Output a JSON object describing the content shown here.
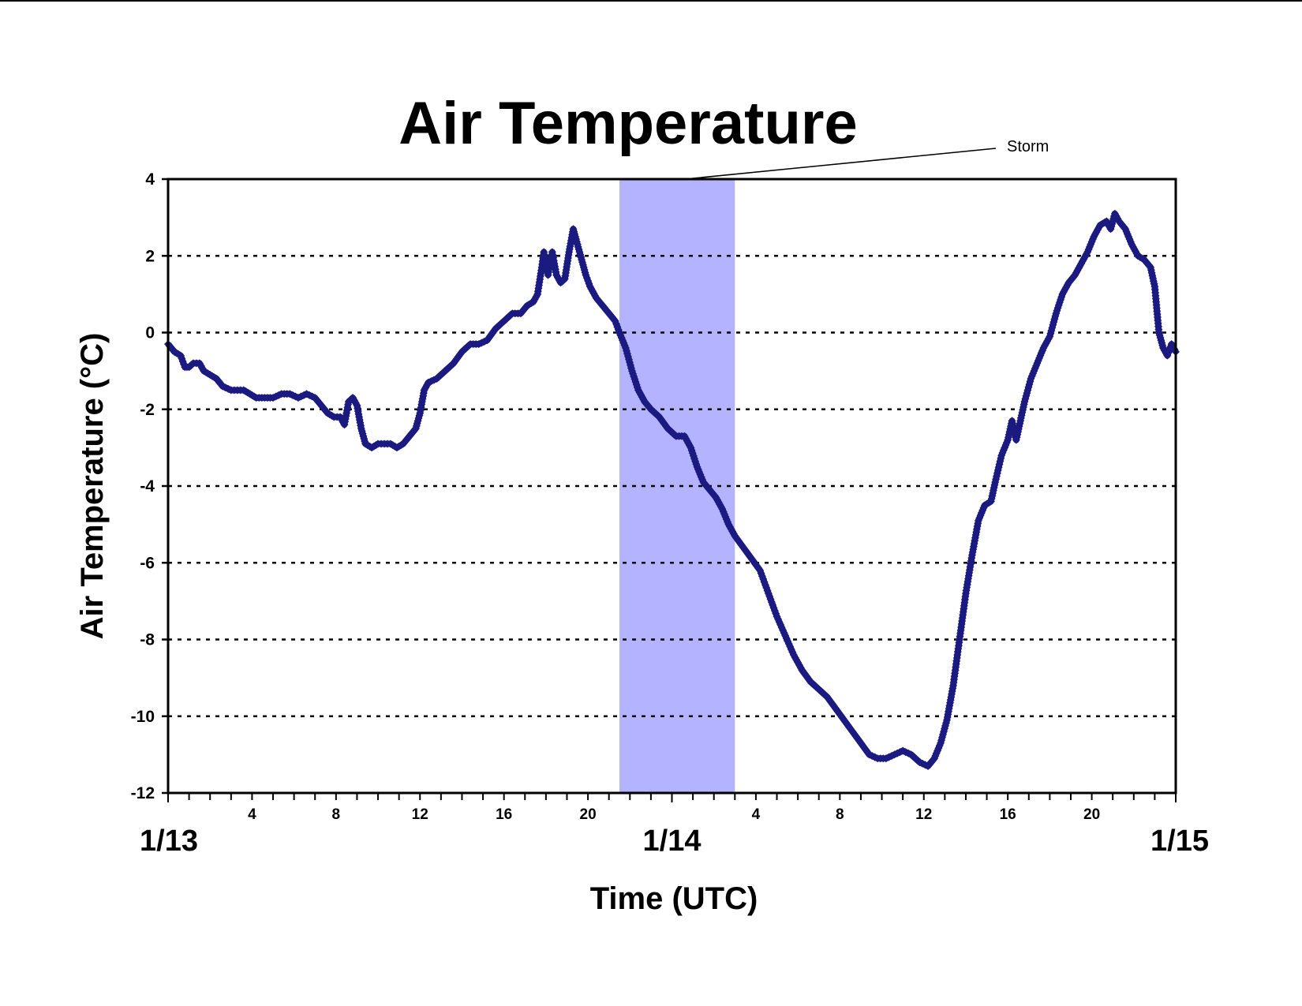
{
  "chart_data": {
    "type": "scatter",
    "title": "Air Temperature",
    "xlabel": "Time (UTC)",
    "ylabel": "Air Temperature (°C)",
    "x_unit": "hours since 1/13 00:00 UTC",
    "xlim": [
      0,
      48
    ],
    "ylim": [
      -12,
      4
    ],
    "yticks": [
      4,
      2,
      0,
      -2,
      -4,
      -6,
      -8,
      -10,
      -12
    ],
    "y_tick_labels": [
      "4",
      "2",
      "0",
      "-2",
      "-4",
      "-6",
      "-8",
      "-10",
      "-12"
    ],
    "x_hour_ticks": [
      {
        "x": 4,
        "label": "4"
      },
      {
        "x": 8,
        "label": "8"
      },
      {
        "x": 12,
        "label": "12"
      },
      {
        "x": 16,
        "label": "16"
      },
      {
        "x": 20,
        "label": "20"
      },
      {
        "x": 28,
        "label": "4"
      },
      {
        "x": 32,
        "label": "8"
      },
      {
        "x": 36,
        "label": "12"
      },
      {
        "x": 40,
        "label": "16"
      },
      {
        "x": 44,
        "label": "20"
      }
    ],
    "date_labels": [
      {
        "x": 0,
        "label": "1/13"
      },
      {
        "x": 24,
        "label": "1/14"
      },
      {
        "x": 48,
        "label": "1/15"
      }
    ],
    "gridlines": "dotted horizontal",
    "storm_band": {
      "label": "Storm",
      "start": 21.5,
      "end": 27.0,
      "color": "#b3b3ff"
    },
    "series": [
      {
        "color": "#1a1a80",
        "marker": "diamond",
        "points": [
          [
            0.0,
            -0.3
          ],
          [
            0.3,
            -0.5
          ],
          [
            0.6,
            -0.6
          ],
          [
            0.8,
            -0.9
          ],
          [
            1.0,
            -0.9
          ],
          [
            1.2,
            -0.8
          ],
          [
            1.5,
            -0.8
          ],
          [
            1.7,
            -1.0
          ],
          [
            2.0,
            -1.1
          ],
          [
            2.3,
            -1.2
          ],
          [
            2.6,
            -1.4
          ],
          [
            3.0,
            -1.5
          ],
          [
            3.3,
            -1.5
          ],
          [
            3.6,
            -1.5
          ],
          [
            3.9,
            -1.6
          ],
          [
            4.2,
            -1.7
          ],
          [
            4.6,
            -1.7
          ],
          [
            5.0,
            -1.7
          ],
          [
            5.4,
            -1.6
          ],
          [
            5.8,
            -1.6
          ],
          [
            6.2,
            -1.7
          ],
          [
            6.6,
            -1.6
          ],
          [
            7.0,
            -1.7
          ],
          [
            7.3,
            -1.9
          ],
          [
            7.6,
            -2.1
          ],
          [
            7.9,
            -2.2
          ],
          [
            8.2,
            -2.2
          ],
          [
            8.4,
            -2.4
          ],
          [
            8.6,
            -1.8
          ],
          [
            8.8,
            -1.7
          ],
          [
            9.0,
            -1.9
          ],
          [
            9.2,
            -2.5
          ],
          [
            9.4,
            -2.9
          ],
          [
            9.7,
            -3.0
          ],
          [
            10.0,
            -2.9
          ],
          [
            10.3,
            -2.9
          ],
          [
            10.6,
            -2.9
          ],
          [
            10.9,
            -3.0
          ],
          [
            11.2,
            -2.9
          ],
          [
            11.5,
            -2.7
          ],
          [
            11.8,
            -2.5
          ],
          [
            12.0,
            -2.1
          ],
          [
            12.2,
            -1.5
          ],
          [
            12.4,
            -1.3
          ],
          [
            12.8,
            -1.2
          ],
          [
            13.2,
            -1.0
          ],
          [
            13.6,
            -0.8
          ],
          [
            14.0,
            -0.5
          ],
          [
            14.4,
            -0.3
          ],
          [
            14.8,
            -0.3
          ],
          [
            15.2,
            -0.2
          ],
          [
            15.6,
            0.1
          ],
          [
            16.0,
            0.3
          ],
          [
            16.4,
            0.5
          ],
          [
            16.8,
            0.5
          ],
          [
            17.1,
            0.7
          ],
          [
            17.4,
            0.8
          ],
          [
            17.6,
            1.0
          ],
          [
            17.8,
            1.7
          ],
          [
            17.9,
            2.1
          ],
          [
            18.1,
            1.5
          ],
          [
            18.3,
            2.1
          ],
          [
            18.5,
            1.5
          ],
          [
            18.7,
            1.3
          ],
          [
            18.9,
            1.4
          ],
          [
            19.1,
            2.1
          ],
          [
            19.3,
            2.7
          ],
          [
            19.5,
            2.3
          ],
          [
            19.7,
            1.9
          ],
          [
            19.9,
            1.5
          ],
          [
            20.1,
            1.2
          ],
          [
            20.4,
            0.9
          ],
          [
            20.7,
            0.7
          ],
          [
            21.0,
            0.5
          ],
          [
            21.3,
            0.3
          ],
          [
            21.5,
            0.0
          ],
          [
            21.8,
            -0.4
          ],
          [
            22.1,
            -1.0
          ],
          [
            22.4,
            -1.5
          ],
          [
            22.7,
            -1.8
          ],
          [
            23.0,
            -2.0
          ],
          [
            23.4,
            -2.2
          ],
          [
            23.8,
            -2.5
          ],
          [
            24.2,
            -2.7
          ],
          [
            24.6,
            -2.7
          ],
          [
            24.9,
            -3.0
          ],
          [
            25.2,
            -3.5
          ],
          [
            25.5,
            -3.9
          ],
          [
            25.8,
            -4.1
          ],
          [
            26.1,
            -4.3
          ],
          [
            26.4,
            -4.6
          ],
          [
            26.7,
            -5.0
          ],
          [
            27.0,
            -5.3
          ],
          [
            27.4,
            -5.6
          ],
          [
            27.8,
            -5.9
          ],
          [
            28.2,
            -6.2
          ],
          [
            28.6,
            -6.8
          ],
          [
            29.0,
            -7.4
          ],
          [
            29.4,
            -7.9
          ],
          [
            29.8,
            -8.4
          ],
          [
            30.2,
            -8.8
          ],
          [
            30.6,
            -9.1
          ],
          [
            31.0,
            -9.3
          ],
          [
            31.4,
            -9.5
          ],
          [
            31.8,
            -9.8
          ],
          [
            32.2,
            -10.1
          ],
          [
            32.6,
            -10.4
          ],
          [
            33.0,
            -10.7
          ],
          [
            33.4,
            -11.0
          ],
          [
            33.8,
            -11.1
          ],
          [
            34.2,
            -11.1
          ],
          [
            34.6,
            -11.0
          ],
          [
            35.0,
            -10.9
          ],
          [
            35.4,
            -11.0
          ],
          [
            35.8,
            -11.2
          ],
          [
            36.2,
            -11.3
          ],
          [
            36.5,
            -11.1
          ],
          [
            36.8,
            -10.7
          ],
          [
            37.1,
            -10.1
          ],
          [
            37.4,
            -9.2
          ],
          [
            37.7,
            -8.0
          ],
          [
            38.0,
            -6.8
          ],
          [
            38.3,
            -5.8
          ],
          [
            38.6,
            -4.9
          ],
          [
            38.9,
            -4.5
          ],
          [
            39.2,
            -4.4
          ],
          [
            39.4,
            -3.9
          ],
          [
            39.7,
            -3.2
          ],
          [
            40.0,
            -2.8
          ],
          [
            40.2,
            -2.3
          ],
          [
            40.4,
            -2.8
          ],
          [
            40.6,
            -2.3
          ],
          [
            40.8,
            -1.8
          ],
          [
            41.1,
            -1.2
          ],
          [
            41.4,
            -0.8
          ],
          [
            41.7,
            -0.4
          ],
          [
            42.0,
            -0.1
          ],
          [
            42.3,
            0.5
          ],
          [
            42.6,
            1.0
          ],
          [
            42.9,
            1.3
          ],
          [
            43.2,
            1.5
          ],
          [
            43.5,
            1.8
          ],
          [
            43.8,
            2.1
          ],
          [
            44.1,
            2.5
          ],
          [
            44.4,
            2.8
          ],
          [
            44.7,
            2.9
          ],
          [
            44.9,
            2.7
          ],
          [
            45.1,
            3.1
          ],
          [
            45.3,
            2.9
          ],
          [
            45.6,
            2.7
          ],
          [
            45.9,
            2.3
          ],
          [
            46.2,
            2.0
          ],
          [
            46.5,
            1.9
          ],
          [
            46.8,
            1.7
          ],
          [
            47.0,
            1.2
          ],
          [
            47.2,
            0.0
          ],
          [
            47.4,
            -0.4
          ],
          [
            47.6,
            -0.6
          ],
          [
            47.8,
            -0.3
          ],
          [
            48.0,
            -0.5
          ]
        ]
      }
    ]
  }
}
